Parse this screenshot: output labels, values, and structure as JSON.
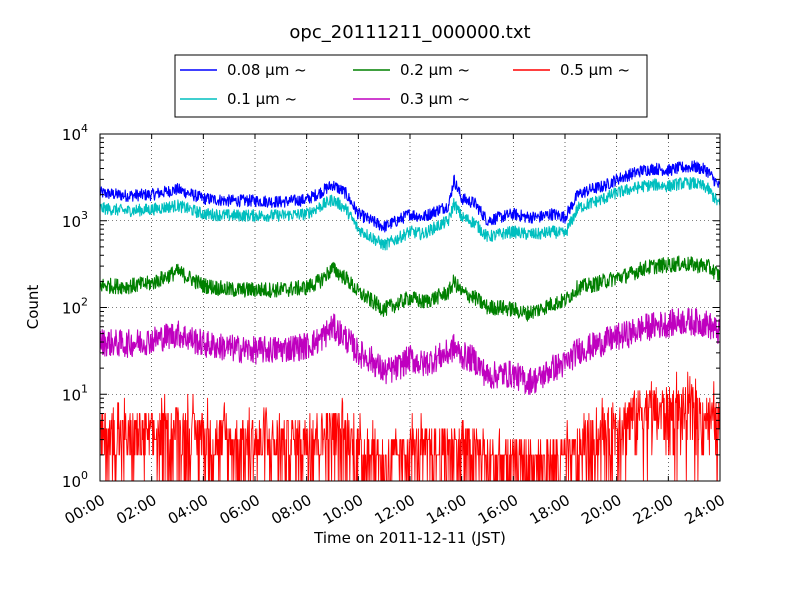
{
  "chart_data": {
    "type": "line",
    "title": "opc_20111211_000000.txt",
    "xlabel": "Time on 2011-12-11 (JST)",
    "ylabel": "Count",
    "x_ticks": [
      "00:00",
      "02:00",
      "04:00",
      "06:00",
      "08:00",
      "10:00",
      "12:00",
      "14:00",
      "16:00",
      "18:00",
      "20:00",
      "22:00",
      "24:00"
    ],
    "xlim_hours": [
      0,
      24
    ],
    "yscale": "log",
    "ylim": [
      1,
      10000
    ],
    "y_ticks": [
      {
        "base": "10",
        "exp": "0"
      },
      {
        "base": "10",
        "exp": "1"
      },
      {
        "base": "10",
        "exp": "2"
      },
      {
        "base": "10",
        "exp": "3"
      },
      {
        "base": "10",
        "exp": "4"
      }
    ],
    "grid": true,
    "legend_placement": "top-center",
    "series": [
      {
        "name": "0.08 μm ~",
        "color": "#0000ff",
        "x": [
          0,
          1,
          2,
          3,
          4,
          5,
          6,
          7,
          8,
          8.5,
          9,
          9.5,
          10,
          10.5,
          11,
          11.5,
          12,
          12.5,
          13,
          13.5,
          13.7,
          14,
          14.5,
          15,
          15.5,
          16,
          16.5,
          17,
          17.5,
          18,
          18.5,
          19,
          19.5,
          20,
          20.5,
          21,
          21.5,
          22,
          22.5,
          23,
          23.5,
          24
        ],
        "values": [
          2100,
          1950,
          2000,
          2300,
          1800,
          1700,
          1700,
          1650,
          1750,
          2100,
          2600,
          2100,
          1200,
          1000,
          850,
          1000,
          1200,
          1100,
          1300,
          1500,
          3000,
          1800,
          1600,
          1000,
          1100,
          1200,
          1100,
          1100,
          1200,
          1100,
          2000,
          2300,
          2500,
          3000,
          3400,
          3800,
          4000,
          3800,
          4100,
          4200,
          3800,
          2400
        ]
      },
      {
        "name": "0.1 μm ~",
        "color": "#00bfbf",
        "x": [
          0,
          1,
          2,
          3,
          4,
          5,
          6,
          7,
          8,
          8.5,
          9,
          9.5,
          10,
          10.5,
          11,
          11.5,
          12,
          12.5,
          13,
          13.5,
          13.7,
          14,
          14.5,
          15,
          15.5,
          16,
          16.5,
          17,
          17.5,
          18,
          18.5,
          19,
          19.5,
          20,
          20.5,
          21,
          21.5,
          22,
          22.5,
          23,
          23.5,
          24
        ],
        "values": [
          1400,
          1300,
          1350,
          1500,
          1200,
          1150,
          1150,
          1150,
          1200,
          1450,
          1750,
          1400,
          800,
          650,
          520,
          620,
          750,
          700,
          850,
          1000,
          1600,
          1100,
          950,
          650,
          700,
          750,
          700,
          700,
          750,
          700,
          1400,
          1600,
          1800,
          2100,
          2300,
          2500,
          2600,
          2500,
          2700,
          2700,
          2400,
          1500
        ]
      },
      {
        "name": "0.2 μm ~",
        "color": "#008000",
        "x": [
          0,
          1,
          2,
          3,
          4,
          5,
          6,
          7,
          8,
          8.5,
          9,
          9.5,
          10,
          10.5,
          11,
          11.5,
          12,
          12.5,
          13,
          13.5,
          13.7,
          14,
          14.5,
          15,
          15.5,
          16,
          16.5,
          17,
          17.5,
          18,
          18.5,
          19,
          19.5,
          20,
          20.5,
          21,
          21.5,
          22,
          22.5,
          23,
          23.5,
          24
        ],
        "values": [
          180,
          175,
          190,
          260,
          180,
          160,
          160,
          160,
          170,
          200,
          280,
          220,
          150,
          120,
          95,
          110,
          130,
          115,
          130,
          150,
          200,
          150,
          130,
          100,
          100,
          95,
          85,
          95,
          110,
          120,
          170,
          180,
          200,
          220,
          240,
          280,
          300,
          310,
          320,
          310,
          300,
          230
        ]
      },
      {
        "name": "0.3 μm ~",
        "color": "#bf00bf",
        "x": [
          0,
          1,
          2,
          3,
          4,
          5,
          6,
          7,
          8,
          8.5,
          9,
          9.5,
          10,
          10.5,
          11,
          11.5,
          12,
          12.5,
          13,
          13.5,
          13.7,
          14,
          14.5,
          15,
          15.5,
          16,
          16.5,
          17,
          17.5,
          18,
          18.5,
          19,
          19.5,
          20,
          20.5,
          21,
          21.5,
          22,
          22.5,
          23,
          23.5,
          24
        ],
        "values": [
          40,
          38,
          42,
          50,
          38,
          34,
          32,
          33,
          36,
          42,
          60,
          45,
          30,
          25,
          18,
          20,
          26,
          22,
          26,
          30,
          35,
          28,
          25,
          16,
          17,
          17,
          14,
          15,
          20,
          22,
          32,
          35,
          40,
          45,
          50,
          58,
          62,
          65,
          70,
          68,
          65,
          50
        ]
      },
      {
        "name": "0.5 μm ~",
        "color": "#ff0000",
        "x": [
          0,
          1,
          2,
          3,
          4,
          5,
          6,
          7,
          8,
          8.5,
          9,
          9.5,
          10,
          10.5,
          11,
          11.5,
          12,
          12.5,
          13,
          13.5,
          13.7,
          14,
          14.5,
          15,
          15.5,
          16,
          16.5,
          17,
          17.5,
          18,
          18.5,
          19,
          19.5,
          20,
          20.5,
          21,
          21.5,
          22,
          22.5,
          23,
          23.5,
          24
        ],
        "values": [
          3,
          3,
          3,
          3.5,
          3,
          2.5,
          2.5,
          2.5,
          3,
          3,
          3.5,
          3,
          2,
          2,
          1.5,
          1.5,
          2,
          2,
          2,
          2,
          2.5,
          2,
          2,
          1.5,
          1.5,
          1.5,
          1.5,
          1.5,
          1.5,
          1.5,
          2,
          2.5,
          3,
          4,
          5,
          6,
          6,
          6,
          6,
          5.5,
          5,
          4
        ]
      }
    ]
  }
}
